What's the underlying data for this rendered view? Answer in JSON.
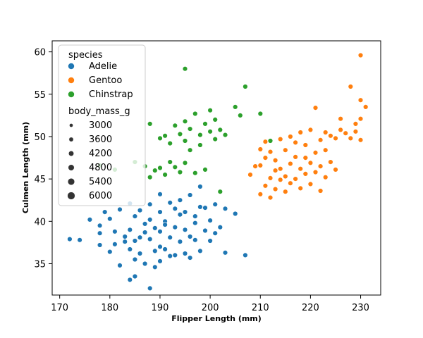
{
  "chart_data": {
    "type": "scatter",
    "xlabel": "Flipper Length (mm)",
    "ylabel": "Culmen Length (mm)",
    "xlim": [
      168.5,
      234
    ],
    "ylim": [
      31.3,
      61.3
    ],
    "xticks": [
      170,
      180,
      190,
      200,
      210,
      220,
      230
    ],
    "yticks": [
      35,
      40,
      45,
      50,
      55,
      60
    ],
    "grid": false,
    "legend": {
      "position": "top-left",
      "hue_title": "species",
      "size_title": "body_mass_g",
      "size_values": [
        3000,
        3600,
        4200,
        4800,
        5400,
        6000
      ]
    },
    "series": [
      {
        "name": "Adelie",
        "color": "#1f77b4",
        "points": [
          [
            172,
            37.9
          ],
          [
            174,
            37.8
          ],
          [
            176,
            40.2
          ],
          [
            178,
            37.2
          ],
          [
            178,
            39.5
          ],
          [
            178,
            38.6
          ],
          [
            179,
            41.1
          ],
          [
            180,
            40.3
          ],
          [
            180,
            36.4
          ],
          [
            181,
            38.8
          ],
          [
            181,
            37.3
          ],
          [
            182,
            41.4
          ],
          [
            182,
            34.8
          ],
          [
            183,
            37.6
          ],
          [
            183,
            38.2
          ],
          [
            184,
            36.7
          ],
          [
            184,
            42.1
          ],
          [
            184,
            39.0
          ],
          [
            185,
            37.7
          ],
          [
            185,
            35.5
          ],
          [
            185,
            40.6
          ],
          [
            185,
            33.5
          ],
          [
            186,
            38.1
          ],
          [
            186,
            36.2
          ],
          [
            186,
            41.3
          ],
          [
            187,
            39.7
          ],
          [
            187,
            35.0
          ],
          [
            187,
            38.7
          ],
          [
            188,
            42.0
          ],
          [
            188,
            37.9
          ],
          [
            188,
            40.2
          ],
          [
            189,
            36.5
          ],
          [
            189,
            39.2
          ],
          [
            189,
            34.6
          ],
          [
            190,
            41.1
          ],
          [
            190,
            37.0
          ],
          [
            190,
            38.8
          ],
          [
            190,
            35.3
          ],
          [
            190,
            43.2
          ],
          [
            191,
            40.0
          ],
          [
            191,
            36.7
          ],
          [
            191,
            39.6
          ],
          [
            192,
            42.2
          ],
          [
            192,
            38.1
          ],
          [
            192,
            35.9
          ],
          [
            193,
            41.5
          ],
          [
            193,
            39.3
          ],
          [
            193,
            36.0
          ],
          [
            194,
            40.8
          ],
          [
            194,
            37.6
          ],
          [
            194,
            42.5
          ],
          [
            195,
            39.0
          ],
          [
            195,
            36.2
          ],
          [
            195,
            41.1
          ],
          [
            196,
            38.2
          ],
          [
            196,
            43.1
          ],
          [
            196,
            35.7
          ],
          [
            197,
            40.6
          ],
          [
            197,
            37.8
          ],
          [
            197,
            39.8
          ],
          [
            198,
            41.7
          ],
          [
            198,
            36.5
          ],
          [
            198,
            44.1
          ],
          [
            199,
            38.9
          ],
          [
            199,
            41.6
          ],
          [
            200,
            37.7
          ],
          [
            200,
            40.1
          ],
          [
            201,
            38.6
          ],
          [
            201,
            42.0
          ],
          [
            202,
            39.3
          ],
          [
            203,
            41.5
          ],
          [
            203,
            36.3
          ],
          [
            205,
            40.9
          ],
          [
            207,
            36.0
          ],
          [
            184,
            33.1
          ],
          [
            188,
            32.1
          ]
        ]
      },
      {
        "name": "Gentoo",
        "color": "#ff7f0e",
        "points": [
          [
            208,
            45.5
          ],
          [
            209,
            46.5
          ],
          [
            210,
            43.2
          ],
          [
            210,
            46.6
          ],
          [
            210,
            48.5
          ],
          [
            211,
            44.2
          ],
          [
            211,
            47.5
          ],
          [
            211,
            49.4
          ],
          [
            212,
            42.8
          ],
          [
            212,
            45.1
          ],
          [
            212,
            48.2
          ],
          [
            213,
            46.0
          ],
          [
            213,
            43.8
          ],
          [
            213,
            47.2
          ],
          [
            214,
            44.9
          ],
          [
            214,
            49.7
          ],
          [
            214,
            46.2
          ],
          [
            215,
            45.3
          ],
          [
            215,
            48.4
          ],
          [
            215,
            43.5
          ],
          [
            216,
            46.8
          ],
          [
            216,
            50.0
          ],
          [
            216,
            44.5
          ],
          [
            217,
            47.6
          ],
          [
            217,
            45.0
          ],
          [
            217,
            49.3
          ],
          [
            218,
            46.2
          ],
          [
            218,
            50.5
          ],
          [
            218,
            43.9
          ],
          [
            219,
            47.5
          ],
          [
            219,
            45.6
          ],
          [
            219,
            49.0
          ],
          [
            220,
            46.9
          ],
          [
            220,
            44.4
          ],
          [
            220,
            50.8
          ],
          [
            221,
            48.1
          ],
          [
            221,
            45.8
          ],
          [
            221,
            53.4
          ],
          [
            222,
            46.5
          ],
          [
            222,
            49.6
          ],
          [
            222,
            43.6
          ],
          [
            223,
            48.4
          ],
          [
            223,
            50.5
          ],
          [
            223,
            45.2
          ],
          [
            224,
            47.0
          ],
          [
            224,
            50.1
          ],
          [
            225,
            49.8
          ],
          [
            225,
            46.1
          ],
          [
            226,
            50.8
          ],
          [
            226,
            52.1
          ],
          [
            227,
            50.4
          ],
          [
            228,
            55.9
          ],
          [
            228,
            49.8
          ],
          [
            229,
            50.6
          ],
          [
            229,
            51.5
          ],
          [
            230,
            54.3
          ],
          [
            230,
            52.1
          ],
          [
            230,
            49.6
          ],
          [
            231,
            53.5
          ],
          [
            230,
            59.6
          ]
        ]
      },
      {
        "name": "Chinstrap",
        "color": "#2ca02c",
        "points": [
          [
            178,
            46.6
          ],
          [
            181,
            46.1
          ],
          [
            185,
            47.0
          ],
          [
            187,
            46.5
          ],
          [
            188,
            45.2
          ],
          [
            188,
            51.5
          ],
          [
            189,
            46.0
          ],
          [
            190,
            49.8
          ],
          [
            190,
            46.3
          ],
          [
            191,
            50.1
          ],
          [
            191,
            45.5
          ],
          [
            192,
            49.2
          ],
          [
            192,
            47.0
          ],
          [
            193,
            51.3
          ],
          [
            193,
            46.4
          ],
          [
            194,
            50.3
          ],
          [
            194,
            45.8
          ],
          [
            195,
            49.5
          ],
          [
            195,
            51.8
          ],
          [
            195,
            46.9
          ],
          [
            196,
            48.4
          ],
          [
            196,
            50.9
          ],
          [
            197,
            45.7
          ],
          [
            197,
            52.7
          ],
          [
            198,
            50.2
          ],
          [
            198,
            49.0
          ],
          [
            199,
            51.5
          ],
          [
            199,
            46.1
          ],
          [
            200,
            50.6
          ],
          [
            200,
            53.1
          ],
          [
            201,
            49.7
          ],
          [
            201,
            52.0
          ],
          [
            202,
            50.8
          ],
          [
            203,
            50.2
          ],
          [
            205,
            53.5
          ],
          [
            206,
            52.5
          ],
          [
            207,
            55.9
          ],
          [
            210,
            52.7
          ],
          [
            212,
            49.5
          ],
          [
            195,
            58.0
          ],
          [
            202,
            43.5
          ]
        ]
      }
    ]
  }
}
